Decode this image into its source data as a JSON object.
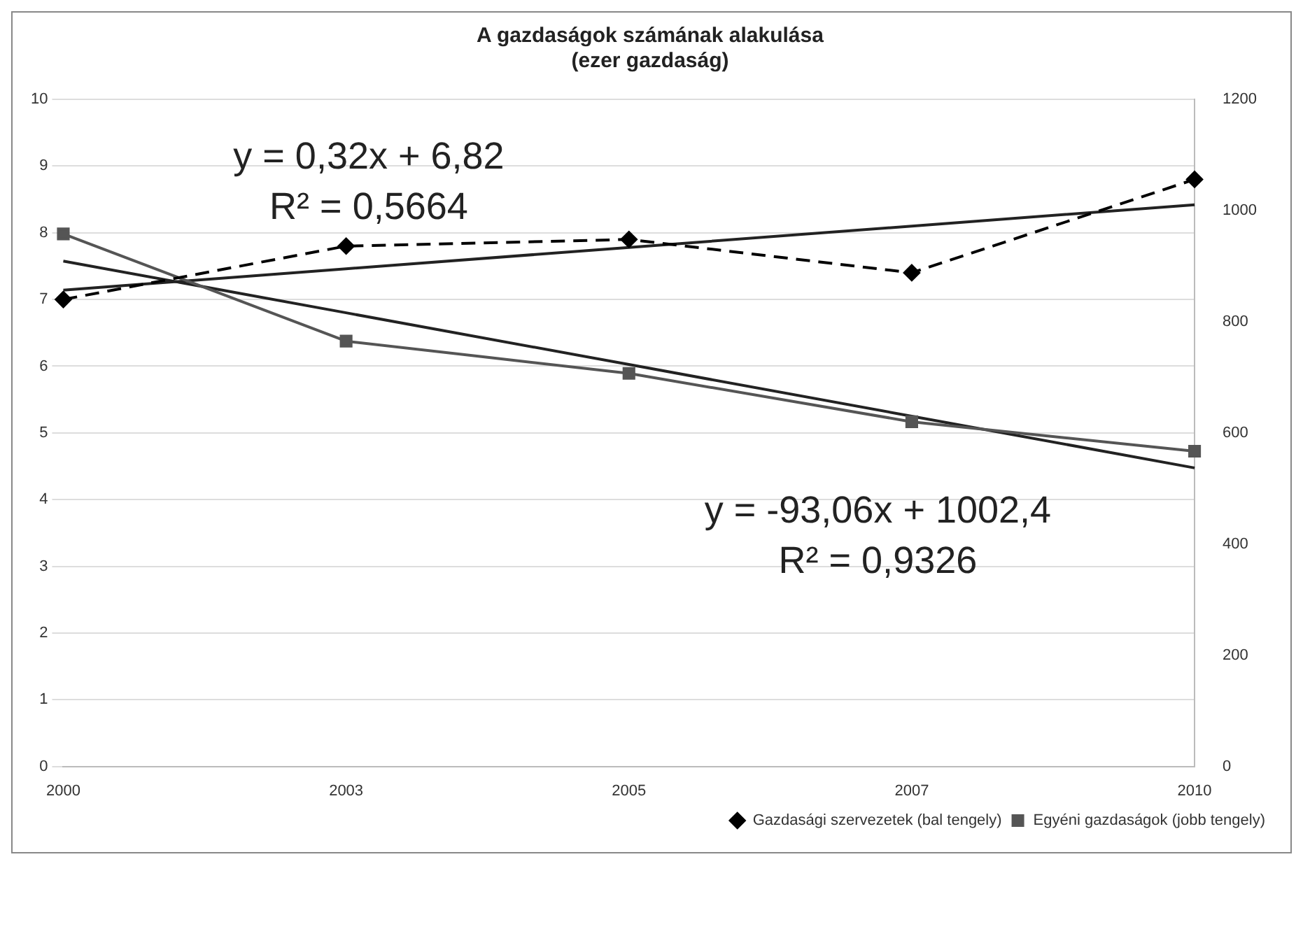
{
  "chart_data": {
    "type": "line",
    "title": "A gazdaságok számának alakulása",
    "subtitle": "(ezer gazdaság)",
    "categories": [
      "2000",
      "2003",
      "2005",
      "2007",
      "2010"
    ],
    "series": [
      {
        "name": "Gazdasági szervezetek (bal tengely)",
        "color": "#000000",
        "values": [
          7.0,
          7.8,
          7.9,
          7.4,
          8.8
        ],
        "marker": "diamond",
        "line_style": "dashed"
      },
      {
        "name": "Egyéni gazdaságok (jobb tengely)",
        "color": "#555555",
        "values": [
          958,
          765,
          707,
          620,
          567
        ],
        "marker": "square",
        "line_style": "solid",
        "axis": "y2"
      },
      {
        "type": "line",
        "color": "#222222",
        "values": [
          7.14,
          7.46,
          7.78,
          8.1,
          8.42
        ],
        "marker": "none",
        "line_style": "solid"
      },
      {
        "type": "line",
        "color": "#222222",
        "values": [
          909,
          816,
          723,
          630,
          537
        ],
        "marker": "none",
        "line_style": "solid",
        "axis": "y2"
      }
    ],
    "ylim": [
      0,
      10
    ],
    "yticks": [
      0,
      1,
      2,
      3,
      4,
      5,
      6,
      7,
      8,
      9,
      10
    ],
    "y2lim": [
      0,
      1200
    ],
    "y2ticks": [
      0,
      200,
      400,
      600,
      800,
      1000,
      1200
    ],
    "grid": "y",
    "legend": "bottom right",
    "annotations": [
      "y = 0,32x + 6,82\nR² = 0,5664",
      "y = -93,06x + 1002,4\nR² = 0,9326"
    ]
  }
}
